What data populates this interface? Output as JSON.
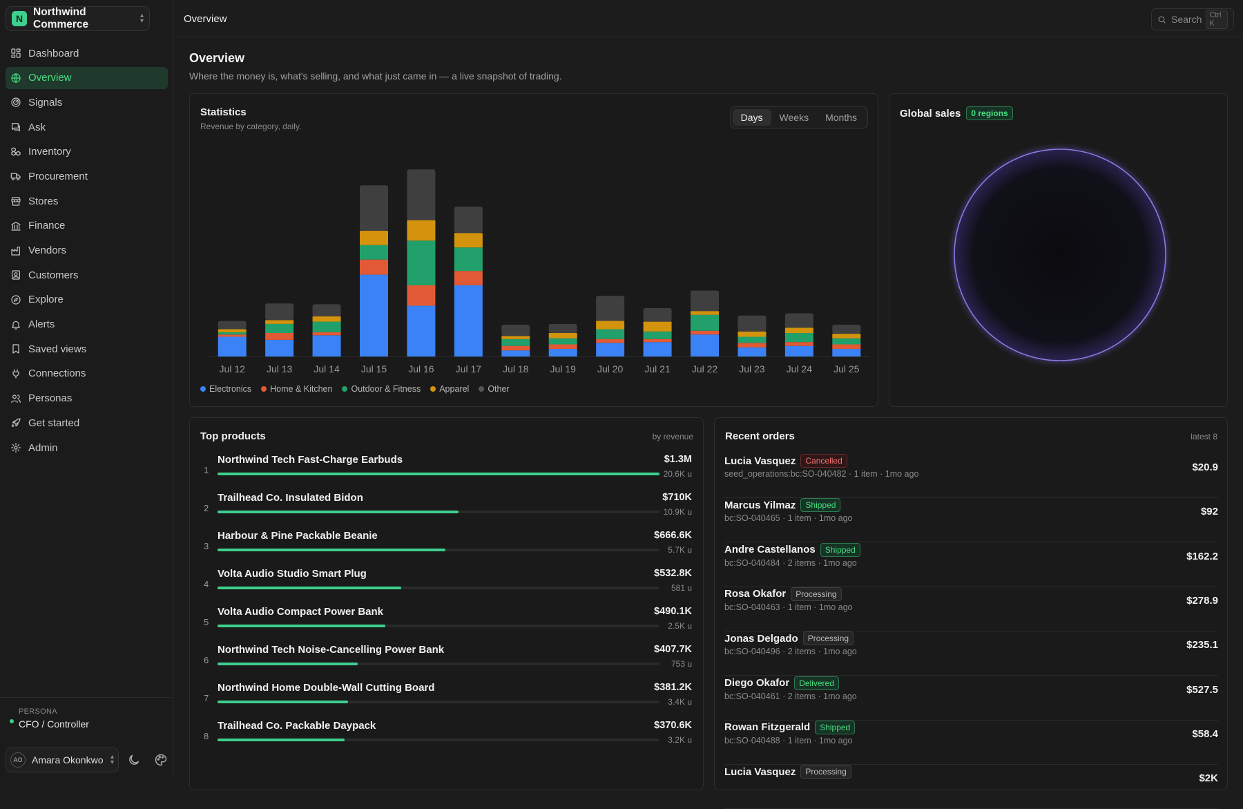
{
  "org": {
    "initial": "N",
    "name": "Northwind Commerce"
  },
  "nav": [
    {
      "label": "Dashboard",
      "icon": "dashboard-icon"
    },
    {
      "label": "Overview",
      "icon": "globe-icon",
      "active": true
    },
    {
      "label": "Signals",
      "icon": "radar-icon"
    },
    {
      "label": "Ask",
      "icon": "chat-icon"
    },
    {
      "label": "Inventory",
      "icon": "boxes-icon"
    },
    {
      "label": "Procurement",
      "icon": "truck-icon"
    },
    {
      "label": "Stores",
      "icon": "store-icon"
    },
    {
      "label": "Finance",
      "icon": "bank-icon"
    },
    {
      "label": "Vendors",
      "icon": "factory-icon"
    },
    {
      "label": "Customers",
      "icon": "contact-icon"
    },
    {
      "label": "Explore",
      "icon": "compass-icon"
    },
    {
      "label": "Alerts",
      "icon": "bell-icon"
    },
    {
      "label": "Saved views",
      "icon": "bookmark-icon"
    },
    {
      "label": "Connections",
      "icon": "plug-icon"
    },
    {
      "label": "Personas",
      "icon": "users-icon"
    },
    {
      "label": "Get started",
      "icon": "rocket-icon"
    },
    {
      "label": "Admin",
      "icon": "gear-icon"
    }
  ],
  "persona": {
    "label": "PERSONA",
    "value": "CFO / Controller"
  },
  "user": {
    "initials": "AO",
    "name": "Amara Okonkwo"
  },
  "topbar": {
    "title": "Overview",
    "search_placeholder": "Search",
    "search_shortcut": "Ctrl K"
  },
  "page": {
    "title": "Overview",
    "subtitle": "Where the money is, what's selling, and what just came in — a live snapshot of trading."
  },
  "statistics": {
    "title": "Statistics",
    "subtitle": "Revenue by category, daily.",
    "ranges": [
      "Days",
      "Weeks",
      "Months"
    ],
    "active_range": "Days"
  },
  "chart_data": {
    "type": "bar",
    "stacked": true,
    "categories": [
      "Jul 12",
      "Jul 13",
      "Jul 14",
      "Jul 15",
      "Jul 16",
      "Jul 17",
      "Jul 18",
      "Jul 19",
      "Jul 20",
      "Jul 21",
      "Jul 22",
      "Jul 23",
      "Jul 24",
      "Jul 25"
    ],
    "series": [
      {
        "name": "Electronics",
        "color": "#3b82f6",
        "values": [
          26,
          22,
          28,
          108,
          67,
          94,
          8,
          10,
          18,
          19,
          29,
          12,
          14,
          10
        ]
      },
      {
        "name": "Home & Kitchen",
        "color": "#e25a35",
        "values": [
          3,
          9,
          4,
          20,
          27,
          19,
          6,
          6,
          5,
          4,
          5,
          6,
          5,
          6
        ]
      },
      {
        "name": "Outdoor & Fitness",
        "color": "#22a06b",
        "values": [
          3,
          12,
          14,
          19,
          59,
          31,
          9,
          8,
          13,
          10,
          21,
          8,
          12,
          8
        ]
      },
      {
        "name": "Apparel",
        "color": "#d4930d",
        "values": [
          4,
          5,
          7,
          19,
          27,
          19,
          4,
          7,
          11,
          13,
          5,
          7,
          7,
          6
        ]
      },
      {
        "name": "Other",
        "color": "#3f3f3f",
        "values": [
          11,
          22,
          16,
          60,
          67,
          35,
          15,
          12,
          33,
          18,
          27,
          21,
          19,
          12
        ]
      }
    ],
    "ylim": [
      0,
      260
    ],
    "grid": false,
    "legend_position": "bottom-left"
  },
  "global_sales": {
    "title": "Global sales",
    "badge": "0 regions"
  },
  "top_products": {
    "title": "Top products",
    "sort_label": "by revenue",
    "items": [
      {
        "rank": "1",
        "name": "Northwind Tech Fast-Charge Earbuds",
        "revenue": "$1.3M",
        "units": "20.6K u",
        "share": 1.0
      },
      {
        "rank": "2",
        "name": "Trailhead Co. Insulated Bidon",
        "revenue": "$710K",
        "units": "10.9K u",
        "share": 0.545
      },
      {
        "rank": "3",
        "name": "Harbour & Pine Packable Beanie",
        "revenue": "$666.6K",
        "units": "5.7K u",
        "share": 0.515
      },
      {
        "rank": "4",
        "name": "Volta Audio Studio Smart Plug",
        "revenue": "$532.8K",
        "units": "581 u",
        "share": 0.415
      },
      {
        "rank": "5",
        "name": "Volta Audio Compact Power Bank",
        "revenue": "$490.1K",
        "units": "2.5K u",
        "share": 0.38
      },
      {
        "rank": "6",
        "name": "Northwind Tech Noise-Cancelling Power Bank",
        "revenue": "$407.7K",
        "units": "753 u",
        "share": 0.317
      },
      {
        "rank": "7",
        "name": "Northwind Home Double-Wall Cutting Board",
        "revenue": "$381.2K",
        "units": "3.4K u",
        "share": 0.295
      },
      {
        "rank": "8",
        "name": "Trailhead Co. Packable Daypack",
        "revenue": "$370.6K",
        "units": "3.2K u",
        "share": 0.287
      }
    ]
  },
  "recent_orders": {
    "title": "Recent orders",
    "count_label": "latest 8",
    "items": [
      {
        "customer": "Lucia Vasquez",
        "status": "Cancelled",
        "meta": "seed_operations:bc:SO-040482 · 1 item · 1mo ago",
        "amount": "$20.9"
      },
      {
        "customer": "Marcus Yilmaz",
        "status": "Shipped",
        "meta": "bc:SO-040465 · 1 item · 1mo ago",
        "amount": "$92"
      },
      {
        "customer": "Andre Castellanos",
        "status": "Shipped",
        "meta": "bc:SO-040484 · 2 items · 1mo ago",
        "amount": "$162.2"
      },
      {
        "customer": "Rosa Okafor",
        "status": "Processing",
        "meta": "bc:SO-040463 · 1 item · 1mo ago",
        "amount": "$278.9"
      },
      {
        "customer": "Jonas Delgado",
        "status": "Processing",
        "meta": "bc:SO-040496 · 2 items · 1mo ago",
        "amount": "$235.1"
      },
      {
        "customer": "Diego Okafor",
        "status": "Delivered",
        "meta": "bc:SO-040461 · 2 items · 1mo ago",
        "amount": "$527.5"
      },
      {
        "customer": "Rowan Fitzgerald",
        "status": "Shipped",
        "meta": "bc:SO-040488 · 1 item · 1mo ago",
        "amount": "$58.4"
      },
      {
        "customer": "Lucia Vasquez",
        "status": "Processing",
        "meta": "",
        "amount": "$2K"
      }
    ]
  }
}
